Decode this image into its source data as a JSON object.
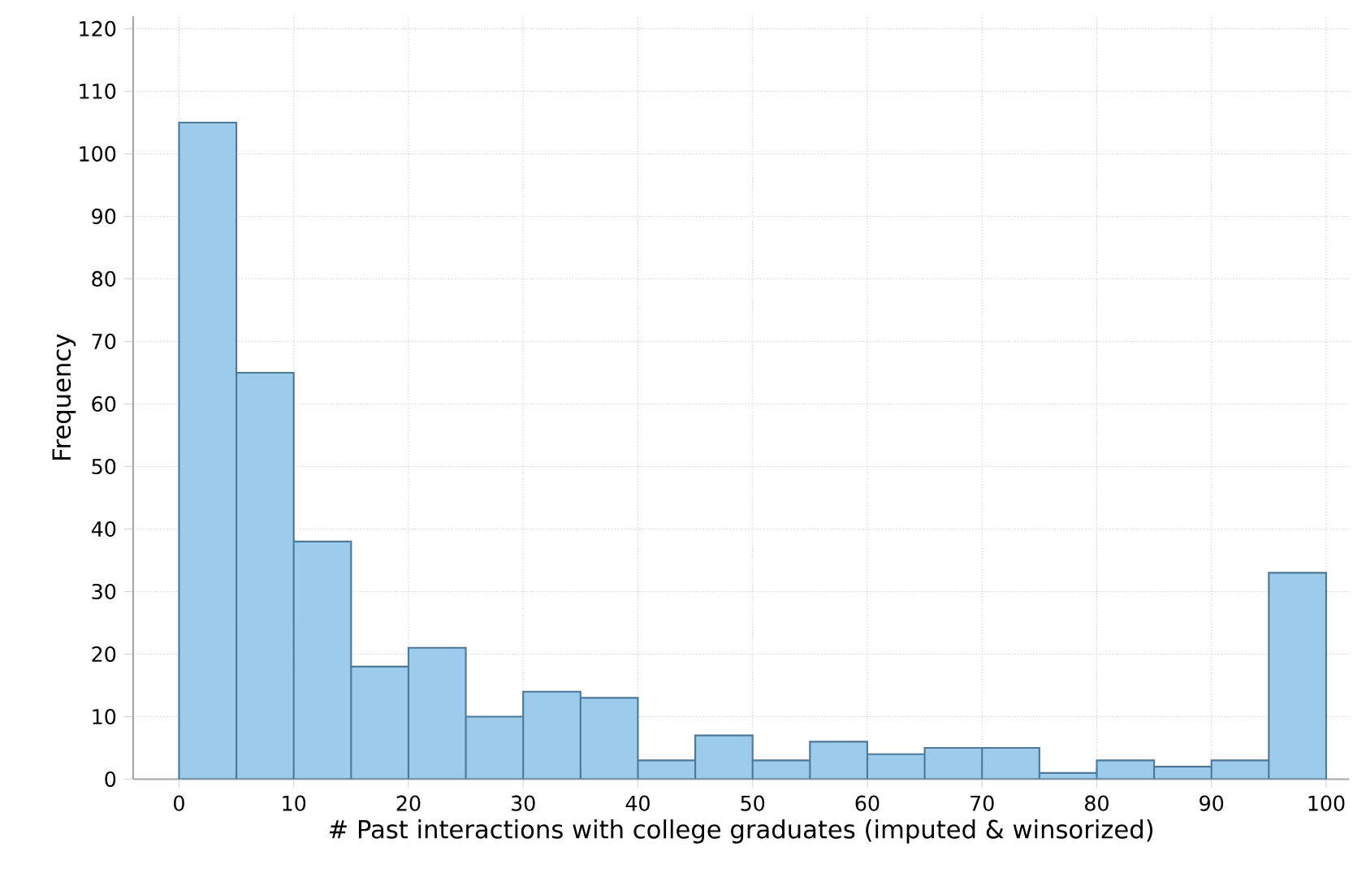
{
  "chart_data": {
    "type": "histogram",
    "xlabel": "# Past interactions with college graduates (imputed & winsorized)",
    "ylabel": "Frequency",
    "bins": [
      0,
      5,
      10,
      15,
      20,
      25,
      30,
      35,
      40,
      45,
      50,
      55,
      60,
      65,
      70,
      75,
      80,
      85,
      90,
      95,
      100
    ],
    "values": [
      105,
      65,
      38,
      18,
      21,
      10,
      14,
      13,
      3,
      7,
      3,
      6,
      4,
      5,
      5,
      1,
      3,
      2,
      3,
      33
    ],
    "color": "#9dcbeb",
    "xlim": [
      -4,
      102
    ],
    "ylim": [
      0,
      122
    ],
    "xticks": [
      0,
      10,
      20,
      30,
      40,
      50,
      60,
      70,
      80,
      90,
      100
    ],
    "yticks": [
      0,
      10,
      20,
      30,
      40,
      50,
      60,
      70,
      80,
      90,
      100,
      110,
      120
    ],
    "grid": true
  }
}
